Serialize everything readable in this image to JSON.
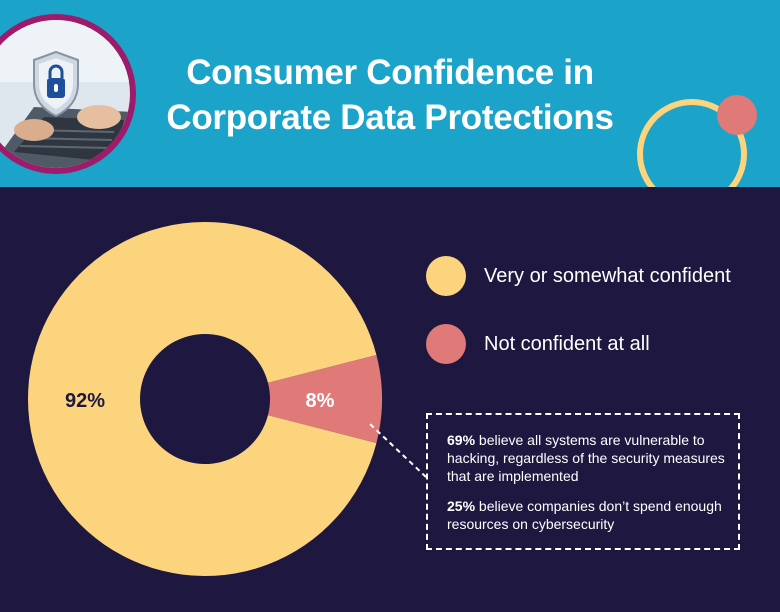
{
  "header": {
    "title_line1": "Consumer Confidence in",
    "title_line2": "Corporate Data Protections",
    "background_color": "#1ba3c9",
    "photo_icon": "laptop-shield-lock-icon"
  },
  "colors": {
    "background": "#1e1840",
    "confident": "#fdd47e",
    "not_confident": "#e07a78",
    "accent_ring": "#9e1a6a",
    "deco_ring": "#fdd47e",
    "deco_dot": "#e07a78"
  },
  "chart_data": {
    "type": "pie",
    "variant": "donut",
    "categories": [
      "Very or somewhat confident",
      "Not confident at all"
    ],
    "values": [
      92,
      8
    ],
    "data_labels": [
      "92%",
      "8%"
    ],
    "legend_placement": "right",
    "title": "Consumer Confidence in Corporate Data Protections"
  },
  "legend": [
    {
      "label": "Very or somewhat confident",
      "color": "#fdd47e"
    },
    {
      "label": "Not confident at all",
      "color": "#e07a78"
    }
  ],
  "notes": [
    {
      "stat": "69%",
      "text": " believe all systems are vulnerable to hacking, regardless of the security measures that are implemented"
    },
    {
      "stat": "25%",
      "text": " believe companies don’t spend enough resources on cybersecurity"
    }
  ]
}
